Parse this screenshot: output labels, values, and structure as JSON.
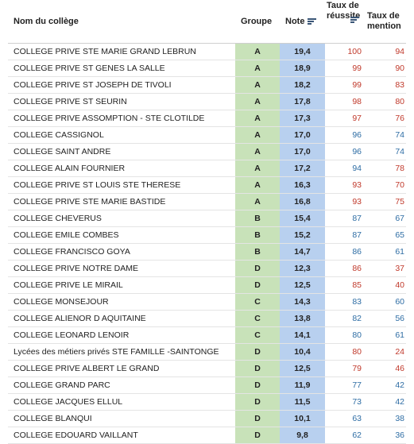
{
  "table": {
    "headers": {
      "nom": "Nom du collège",
      "groupe": "Groupe",
      "note": "Note",
      "taux_reussite": "Taux de réussite",
      "taux_mention": "Taux de mention"
    },
    "colors": {
      "high": "#c0392b",
      "low": "#2e6da4",
      "groupe_bg": "#c8e2b9",
      "note_bg": "#b8d0ef"
    },
    "rows": [
      {
        "nom": "COLLEGE PRIVE STE MARIE GRAND LEBRUN",
        "groupe": "A",
        "note": "19,4",
        "reussite": "100",
        "mention": "94",
        "rc": "red",
        "mc": "red"
      },
      {
        "nom": "COLLEGE PRIVE ST GENES LA SALLE",
        "groupe": "A",
        "note": "18,9",
        "reussite": "99",
        "mention": "90",
        "rc": "red",
        "mc": "red"
      },
      {
        "nom": "COLLEGE PRIVE ST JOSEPH DE TIVOLI",
        "groupe": "A",
        "note": "18,2",
        "reussite": "99",
        "mention": "83",
        "rc": "red",
        "mc": "red"
      },
      {
        "nom": "COLLEGE PRIVE ST SEURIN",
        "groupe": "A",
        "note": "17,8",
        "reussite": "98",
        "mention": "80",
        "rc": "red",
        "mc": "red"
      },
      {
        "nom": "COLLEGE PRIVE ASSOMPTION - STE CLOTILDE",
        "groupe": "A",
        "note": "17,3",
        "reussite": "97",
        "mention": "76",
        "rc": "red",
        "mc": "red"
      },
      {
        "nom": "COLLEGE CASSIGNOL",
        "groupe": "A",
        "note": "17,0",
        "reussite": "96",
        "mention": "74",
        "rc": "blue",
        "mc": "blue"
      },
      {
        "nom": "COLLEGE SAINT ANDRE",
        "groupe": "A",
        "note": "17,0",
        "reussite": "96",
        "mention": "74",
        "rc": "blue",
        "mc": "blue"
      },
      {
        "nom": "COLLEGE ALAIN FOURNIER",
        "groupe": "A",
        "note": "17,2",
        "reussite": "94",
        "mention": "78",
        "rc": "blue",
        "mc": "red"
      },
      {
        "nom": "COLLEGE PRIVE ST LOUIS STE THERESE",
        "groupe": "A",
        "note": "16,3",
        "reussite": "93",
        "mention": "70",
        "rc": "red",
        "mc": "red"
      },
      {
        "nom": "COLLEGE PRIVE STE MARIE BASTIDE",
        "groupe": "A",
        "note": "16,8",
        "reussite": "93",
        "mention": "75",
        "rc": "red",
        "mc": "red"
      },
      {
        "nom": "COLLEGE CHEVERUS",
        "groupe": "B",
        "note": "15,4",
        "reussite": "87",
        "mention": "67",
        "rc": "blue",
        "mc": "blue"
      },
      {
        "nom": "COLLEGE EMILE COMBES",
        "groupe": "B",
        "note": "15,2",
        "reussite": "87",
        "mention": "65",
        "rc": "blue",
        "mc": "blue"
      },
      {
        "nom": "COLLEGE FRANCISCO GOYA",
        "groupe": "B",
        "note": "14,7",
        "reussite": "86",
        "mention": "61",
        "rc": "blue",
        "mc": "blue"
      },
      {
        "nom": "COLLEGE PRIVE NOTRE DAME",
        "groupe": "D",
        "note": "12,3",
        "reussite": "86",
        "mention": "37",
        "rc": "red",
        "mc": "red"
      },
      {
        "nom": "COLLEGE PRIVE LE MIRAIL",
        "groupe": "D",
        "note": "12,5",
        "reussite": "85",
        "mention": "40",
        "rc": "red",
        "mc": "red"
      },
      {
        "nom": "COLLEGE MONSEJOUR",
        "groupe": "C",
        "note": "14,3",
        "reussite": "83",
        "mention": "60",
        "rc": "blue",
        "mc": "blue"
      },
      {
        "nom": "COLLEGE ALIENOR D AQUITAINE",
        "groupe": "C",
        "note": "13,8",
        "reussite": "82",
        "mention": "56",
        "rc": "blue",
        "mc": "blue"
      },
      {
        "nom": "COLLEGE LEONARD LENOIR",
        "groupe": "C",
        "note": "14,1",
        "reussite": "80",
        "mention": "61",
        "rc": "blue",
        "mc": "blue"
      },
      {
        "nom": "Lycées des métiers privés STE FAMILLE -SAINTONGE",
        "groupe": "D",
        "note": "10,4",
        "reussite": "80",
        "mention": "24",
        "rc": "red",
        "mc": "red"
      },
      {
        "nom": "COLLEGE PRIVE ALBERT LE GRAND",
        "groupe": "D",
        "note": "12,5",
        "reussite": "79",
        "mention": "46",
        "rc": "red",
        "mc": "red"
      },
      {
        "nom": "COLLEGE GRAND PARC",
        "groupe": "D",
        "note": "11,9",
        "reussite": "77",
        "mention": "42",
        "rc": "blue",
        "mc": "blue"
      },
      {
        "nom": "COLLEGE JACQUES ELLUL",
        "groupe": "D",
        "note": "11,5",
        "reussite": "73",
        "mention": "42",
        "rc": "blue",
        "mc": "blue"
      },
      {
        "nom": "COLLEGE BLANQUI",
        "groupe": "D",
        "note": "10,1",
        "reussite": "63",
        "mention": "38",
        "rc": "blue",
        "mc": "blue"
      },
      {
        "nom": "COLLEGE EDOUARD VAILLANT",
        "groupe": "D",
        "note": "9,8",
        "reussite": "62",
        "mention": "36",
        "rc": "blue",
        "mc": "blue"
      }
    ]
  }
}
